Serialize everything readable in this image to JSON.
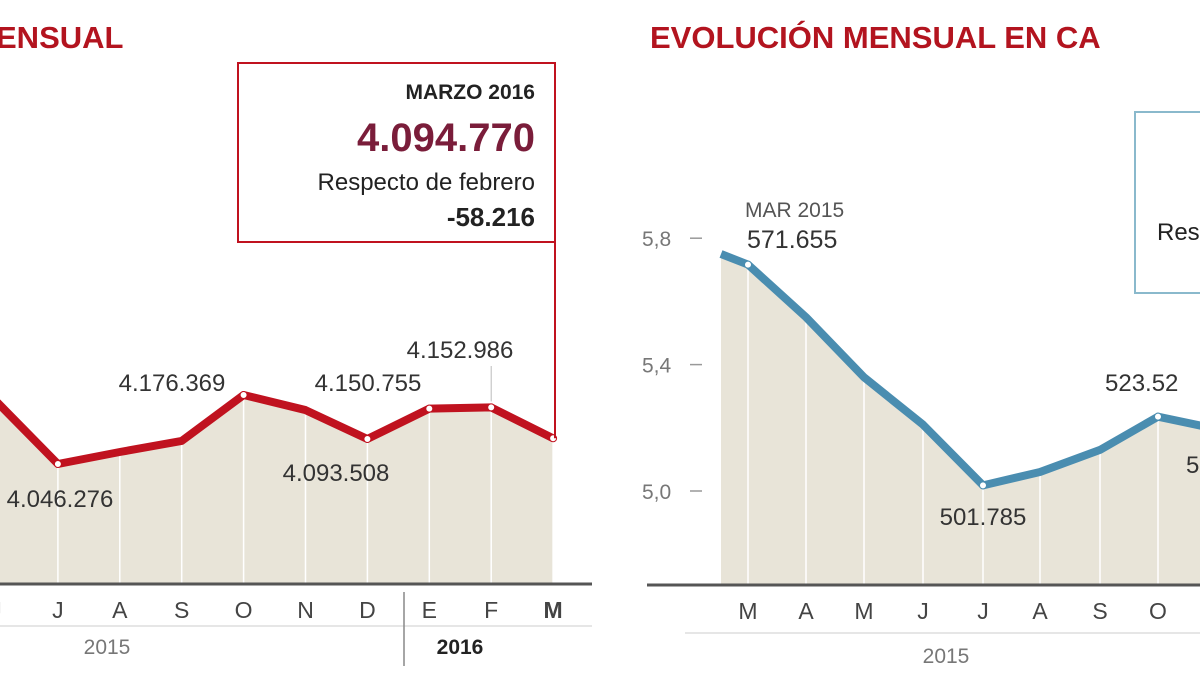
{
  "colors": {
    "left_line": "#c0121f",
    "right_line": "#4a8db0",
    "fill": "#e8e4d8",
    "title": "#b3141f",
    "highlight": "#7a1d3a",
    "right_box": "#8ab9cc"
  },
  "chart_data": [
    {
      "type": "area",
      "title": "ENSUAL",
      "x": [
        "J",
        "J",
        "A",
        "S",
        "O",
        "N",
        "D",
        "E",
        "F",
        "M"
      ],
      "values": [
        4165000,
        4046276,
        4068900,
        4089700,
        4176369,
        4148000,
        4093508,
        4150755,
        4152986,
        4094770
      ],
      "data_labels": [
        {
          "index": 1,
          "text": "4.046.276",
          "pos": "below"
        },
        {
          "index": 4,
          "text": "4.176.369",
          "pos": "above"
        },
        {
          "index": 6,
          "text": "4.093.508",
          "pos": "below"
        },
        {
          "index": 7,
          "text": "4.150.755",
          "pos": "above"
        },
        {
          "index": 8,
          "text": "4.152.986",
          "pos": "above"
        }
      ],
      "year_labels": [
        "2015",
        "2016"
      ],
      "callout": {
        "title": "MARZO 2016",
        "value": "4.094.770",
        "label": "Respecto de febrero",
        "change": "-58.216"
      }
    },
    {
      "type": "area",
      "title": "EVOLUCIÓN MENSUAL EN CA",
      "x": [
        "",
        "M",
        "A",
        "M",
        "J",
        "J",
        "A",
        "S",
        "O",
        ""
      ],
      "values": [
        5.75,
        5.71655,
        5.55,
        5.36,
        5.21,
        5.01785,
        5.06,
        5.13,
        5.2352,
        5.2
      ],
      "yticks": [
        "5,8",
        "5,4",
        "5,0"
      ],
      "ytick_values": [
        5.8,
        5.4,
        5.0
      ],
      "data_labels": [
        {
          "index": 1,
          "text": "571.655",
          "pos": "above",
          "sub": "MAR 2015"
        },
        {
          "index": 5,
          "text": "501.785",
          "pos": "below"
        },
        {
          "index": 8,
          "text": "523.52",
          "pos": "above"
        },
        {
          "index": 9,
          "text": "5",
          "pos": "below"
        }
      ],
      "year_labels": [
        "2015"
      ],
      "callout": {
        "label": "Res"
      }
    }
  ]
}
